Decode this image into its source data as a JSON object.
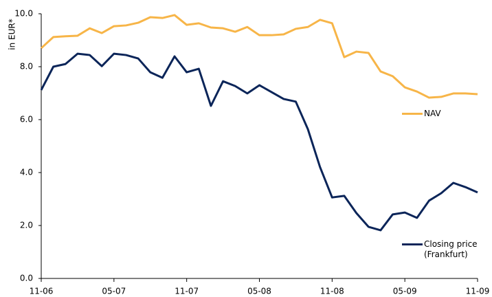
{
  "chart_data": {
    "type": "line",
    "y_label": "in EUR*",
    "categories": [
      "11-06",
      null,
      null,
      null,
      null,
      null,
      "05-07",
      null,
      null,
      null,
      null,
      null,
      "11-07",
      null,
      null,
      null,
      null,
      null,
      "05-08",
      null,
      null,
      null,
      null,
      null,
      "11-08",
      null,
      null,
      null,
      null,
      null,
      "05-09",
      null,
      null,
      null,
      null,
      null,
      "11-09"
    ],
    "series": [
      {
        "name": "NAV",
        "color": "#f7b548",
        "values": [
          8.7,
          9.12,
          9.15,
          9.17,
          9.45,
          9.27,
          9.53,
          9.56,
          9.66,
          9.87,
          9.84,
          9.95,
          9.58,
          9.64,
          9.48,
          9.45,
          9.32,
          9.5,
          9.19,
          9.19,
          9.22,
          9.43,
          9.5,
          9.77,
          9.64,
          8.36,
          8.57,
          8.52,
          7.82,
          7.64,
          7.22,
          7.06,
          6.83,
          6.86,
          6.99,
          6.99,
          6.96
        ]
      },
      {
        "name": "Closing price (Frankfurt)",
        "color": "#0b2559",
        "values": [
          7.12,
          8.0,
          8.1,
          8.49,
          8.44,
          8.02,
          8.49,
          8.44,
          8.31,
          7.79,
          7.58,
          8.39,
          7.79,
          7.92,
          6.52,
          7.45,
          7.27,
          6.99,
          7.3,
          7.04,
          6.78,
          6.68,
          5.64,
          4.21,
          3.06,
          3.12,
          2.47,
          1.95,
          1.82,
          2.42,
          2.49,
          2.29,
          2.94,
          3.22,
          3.61,
          3.45,
          3.25
        ]
      }
    ],
    "ylim": [
      0,
      10
    ],
    "yticks": [
      {
        "value": 0,
        "label": "0.0"
      },
      {
        "value": 2,
        "label": "2.0"
      },
      {
        "value": 4,
        "label": "4.0"
      },
      {
        "value": 6,
        "label": "6.0"
      },
      {
        "value": 8,
        "label": "8.0"
      },
      {
        "value": 10,
        "label": "10.0"
      }
    ],
    "grid": false
  }
}
